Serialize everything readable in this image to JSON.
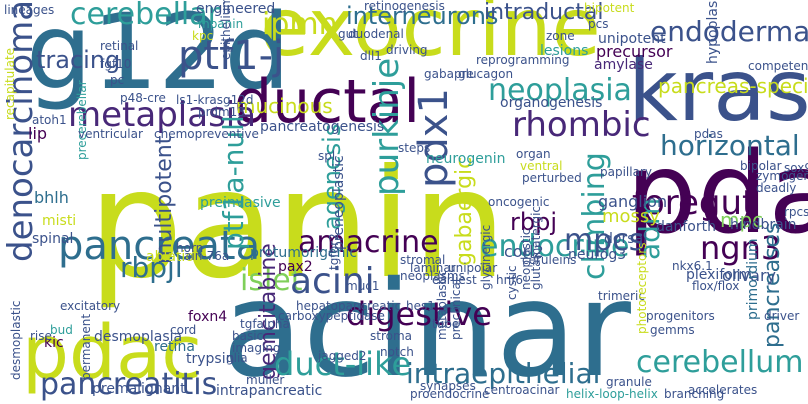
{
  "palette": {
    "yellow_green": "#c8dc1c",
    "light_green": "#7fcf5a",
    "green": "#3aa680",
    "teal": "#2e9e9a",
    "steel": "#2e6e8e",
    "blue": "#3b528b",
    "purple": "#482878",
    "dark": "#440154"
  },
  "words": [
    {
      "text": "panin",
      "color": "#c8dc1c"
    },
    {
      "text": "acinar",
      "color": "#2e6e8e"
    },
    {
      "text": "exocrine",
      "color": "#c8dc1c"
    },
    {
      "text": "g12d",
      "color": "#2e6e8e"
    },
    {
      "text": "pda",
      "color": "#440154"
    },
    {
      "text": "kras",
      "color": "#3b528b"
    },
    {
      "text": "ductal",
      "color": "#440154"
    },
    {
      "text": "pdac",
      "color": "#c8dc1c"
    },
    {
      "text": "pancreata",
      "color": "#2e6e8e"
    },
    {
      "text": "metaplasia",
      "color": "#482878"
    },
    {
      "text": "ptf1-j",
      "color": "#3b528b"
    },
    {
      "text": "denocarcinoma",
      "color": "#3b528b"
    },
    {
      "text": "pancreatitis",
      "color": "#3b528b"
    },
    {
      "text": "cerebellar",
      "color": "#2e9e9a"
    },
    {
      "text": "interneurons",
      "color": "#2e6e8e"
    },
    {
      "text": "intraductal",
      "color": "#3b528b"
    },
    {
      "text": "endodermal",
      "color": "#3b528b"
    },
    {
      "text": "ipmn",
      "color": "#c8dc1c"
    },
    {
      "text": "tracing",
      "color": "#3b528b"
    },
    {
      "text": "neoplasia",
      "color": "#2e9e9a"
    },
    {
      "text": "rhombic",
      "color": "#482878"
    },
    {
      "text": "horizontal",
      "color": "#2e6e8e"
    },
    {
      "text": "foregut",
      "color": "#440154"
    },
    {
      "text": "pdx1",
      "color": "#3b528b"
    },
    {
      "text": "purkinje",
      "color": "#2e9e9a"
    },
    {
      "text": "ptf1a-null",
      "color": "#2e9e9a"
    },
    {
      "text": "multipotent",
      "color": "#3b528b"
    },
    {
      "text": "agenesis",
      "color": "#2e9e9a"
    },
    {
      "text": "climbing",
      "color": "#2e9e9a"
    },
    {
      "text": "ngn3",
      "color": "#440154"
    },
    {
      "text": "adm",
      "color": "#2e9e9a"
    },
    {
      "text": "rbpj",
      "color": "#440154"
    },
    {
      "text": "rbpjl",
      "color": "#2e6e8e"
    },
    {
      "text": "amacrine",
      "color": "#440154"
    },
    {
      "text": "endocrine",
      "color": "#2e9e9a"
    },
    {
      "text": "mpcs",
      "color": "#3b528b"
    },
    {
      "text": "islet",
      "color": "#7fcf5a"
    },
    {
      "text": "acini",
      "color": "#3b528b"
    },
    {
      "text": "digestive",
      "color": "#440154"
    },
    {
      "text": "gemcitabine",
      "color": "#482878"
    },
    {
      "text": "duct-like",
      "color": "#2e9e9a"
    },
    {
      "text": "intraepithelial",
      "color": "#2e6e8e"
    },
    {
      "text": "cerebellum",
      "color": "#2e9e9a"
    },
    {
      "text": "pancreases",
      "color": "#2e6e8e"
    },
    {
      "text": "mucinous",
      "color": "#c8dc1c"
    },
    {
      "text": "gabaergic",
      "color": "#c8dc1c"
    },
    {
      "text": "mpc",
      "color": "#7fcf5a"
    },
    {
      "text": "pancreas-specific",
      "color": "#c8dc1c"
    },
    {
      "text": "organogenesis",
      "color": "#3b528b"
    },
    {
      "text": "precursor",
      "color": "#440154"
    },
    {
      "text": "unipotent",
      "color": "#3b528b"
    },
    {
      "text": "lesions",
      "color": "#2e9e9a"
    },
    {
      "text": "amylase",
      "color": "#482878"
    },
    {
      "text": "zone",
      "color": "#3b528b"
    },
    {
      "text": "hypoplasia",
      "color": "#3b528b"
    },
    {
      "text": "neurogenin",
      "color": "#2e9e9a"
    },
    {
      "text": "pancreatogenesis",
      "color": "#3b528b"
    },
    {
      "text": "mossy",
      "color": "#c8dc1c"
    },
    {
      "text": "ganglion",
      "color": "#3b528b"
    },
    {
      "text": "danforth",
      "color": "#3b528b"
    },
    {
      "text": "hindbrain",
      "color": "#3b528b"
    },
    {
      "text": "olivary",
      "color": "#3b528b"
    },
    {
      "text": "corl2",
      "color": "#3b528b"
    },
    {
      "text": "dorsal",
      "color": "#3b528b"
    },
    {
      "text": "neurog3",
      "color": "#3b528b"
    },
    {
      "text": "preinvasive",
      "color": "#2e9e9a"
    },
    {
      "text": "protumorigenic",
      "color": "#2e6e8e"
    },
    {
      "text": "preneoplastic",
      "color": "#3b528b"
    },
    {
      "text": "pax2",
      "color": "#440154"
    },
    {
      "text": "bhlh",
      "color": "#2e6e8e"
    },
    {
      "text": "misti",
      "color": "#c8dc1c"
    },
    {
      "text": "spinal",
      "color": "#3b528b"
    },
    {
      "text": "lip",
      "color": "#440154"
    },
    {
      "text": "ablation",
      "color": "#c8dc1c"
    },
    {
      "text": "foxn4",
      "color": "#440154"
    },
    {
      "text": "desmoplasia",
      "color": "#3b528b"
    },
    {
      "text": "excitatory",
      "color": "#3b528b"
    },
    {
      "text": "kic",
      "color": "#440154"
    },
    {
      "text": "bud",
      "color": "#2e9e9a"
    },
    {
      "text": "retina",
      "color": "#2e6e8e"
    },
    {
      "text": "trypsin",
      "color": "#3b528b"
    },
    {
      "text": "premalignant",
      "color": "#3b528b"
    },
    {
      "text": "intrapancreatic",
      "color": "#3b528b"
    },
    {
      "text": "engineered",
      "color": "#3b528b"
    },
    {
      "text": "mpanin",
      "color": "#2e9e9a"
    },
    {
      "text": "kpc",
      "color": "#c8dc1c"
    },
    {
      "text": "gut",
      "color": "#3b528b"
    },
    {
      "text": "duodenal",
      "color": "#3b528b"
    },
    {
      "text": "retinal",
      "color": "#3b528b"
    },
    {
      "text": "fgf10",
      "color": "#3b528b"
    },
    {
      "text": "epithelium",
      "color": "#3b528b"
    },
    {
      "text": "p48-cre",
      "color": "#3b528b"
    },
    {
      "text": "gabapre",
      "color": "#3b528b"
    },
    {
      "text": "glucagon",
      "color": "#3b528b"
    },
    {
      "text": "dll1",
      "color": "#3b528b"
    },
    {
      "text": "hes1",
      "color": "#3b528b"
    },
    {
      "text": "muc1",
      "color": "#3b528b"
    },
    {
      "text": "neoplastic",
      "color": "#3b528b"
    },
    {
      "text": "cystic",
      "color": "#3b528b"
    },
    {
      "text": "glycinergic",
      "color": "#3b528b"
    },
    {
      "text": "glutamatergic",
      "color": "#3b528b"
    },
    {
      "text": "trimeric",
      "color": "#3b528b"
    },
    {
      "text": "progenitors",
      "color": "#3b528b"
    },
    {
      "text": "plexiform",
      "color": "#3b528b"
    },
    {
      "text": "primordium",
      "color": "#2e6e8e"
    },
    {
      "text": "photoreceptors",
      "color": "#c8dc1c"
    },
    {
      "text": "gemms",
      "color": "#3b528b"
    },
    {
      "text": "centroacinar",
      "color": "#3b528b"
    },
    {
      "text": "proendocrine",
      "color": "#3b528b"
    },
    {
      "text": "helix-loop-helix",
      "color": "#2e9e9a"
    },
    {
      "text": "accelerates",
      "color": "#3b528b"
    },
    {
      "text": "notch",
      "color": "#3b528b"
    },
    {
      "text": "stroma",
      "color": "#3b528b"
    },
    {
      "text": "preclinical",
      "color": "#3b528b"
    },
    {
      "text": "metaplastic",
      "color": "#3b528b"
    },
    {
      "text": "basic",
      "color": "#3b528b"
    },
    {
      "text": "imaging",
      "color": "#3b528b"
    },
    {
      "text": "glia",
      "color": "#3b528b"
    },
    {
      "text": "cord",
      "color": "#3b528b"
    },
    {
      "text": "horn",
      "color": "#3b528b"
    },
    {
      "text": "lineages",
      "color": "#3b528b"
    },
    {
      "text": "recapitulate",
      "color": "#c8dc1c"
    },
    {
      "text": "precerebellar",
      "color": "#2e9e9a"
    },
    {
      "text": "atoh1",
      "color": "#3b528b"
    },
    {
      "text": "ventricular",
      "color": "#3b528b"
    },
    {
      "text": "chemopreventive",
      "color": "#3b528b"
    },
    {
      "text": "ls1-krasg12d",
      "color": "#3b528b"
    },
    {
      "text": "retinogenesis",
      "color": "#3b528b"
    },
    {
      "text": "reprogramming",
      "color": "#3b528b"
    },
    {
      "text": "driving",
      "color": "#3b528b"
    },
    {
      "text": "bipotent",
      "color": "#c8dc1c"
    },
    {
      "text": "competence",
      "color": "#3b528b"
    },
    {
      "text": "pdas",
      "color": "#3b528b"
    },
    {
      "text": "bipolar",
      "color": "#3b528b"
    },
    {
      "text": "zymogen",
      "color": "#3b528b"
    },
    {
      "text": "deadly",
      "color": "#3b528b"
    },
    {
      "text": "papillary",
      "color": "#3b528b"
    },
    {
      "text": "steps",
      "color": "#3b528b"
    },
    {
      "text": "ventral",
      "color": "#c8dc1c"
    },
    {
      "text": "perturbed",
      "color": "#3b528b"
    },
    {
      "text": "oncogenic",
      "color": "#3b528b"
    },
    {
      "text": "stromal",
      "color": "#3b528b"
    },
    {
      "text": "tgfbr2",
      "color": "#3b528b"
    },
    {
      "text": "organ",
      "color": "#3b528b"
    },
    {
      "text": "nkx6.1",
      "color": "#3b528b"
    },
    {
      "text": "hnf6",
      "color": "#3b528b"
    },
    {
      "text": "flox/flox",
      "color": "#3b528b"
    },
    {
      "text": "unipolar",
      "color": "#3b528b"
    },
    {
      "text": "laminar",
      "color": "#3b528b"
    },
    {
      "text": "neoplasms",
      "color": "#3b528b"
    },
    {
      "text": "ceruleins",
      "color": "#3b528b"
    },
    {
      "text": "tube",
      "color": "#3b528b"
    },
    {
      "text": "synapses",
      "color": "#3b528b"
    },
    {
      "text": "carboxypeptidase",
      "color": "#3b528b"
    },
    {
      "text": "hepatopancreatic",
      "color": "#3b528b"
    },
    {
      "text": "jagged2",
      "color": "#3b528b"
    },
    {
      "text": "tgfalpha",
      "color": "#3b528b"
    },
    {
      "text": "muller",
      "color": "#3b528b"
    },
    {
      "text": "rise",
      "color": "#3b528b"
    },
    {
      "text": "permanent",
      "color": "#3b528b"
    },
    {
      "text": "desmoplastic",
      "color": "#3b528b"
    },
    {
      "text": "granule",
      "color": "#3b528b"
    },
    {
      "text": "branching",
      "color": "#3b528b"
    },
    {
      "text": "driver",
      "color": "#3b528b"
    },
    {
      "text": "rpcs",
      "color": "#3b528b"
    },
    {
      "text": "sox9",
      "color": "#3b528b"
    },
    {
      "text": "pc",
      "color": "#3b528b"
    },
    {
      "text": "prdm13",
      "color": "#3b528b"
    },
    {
      "text": "earliest",
      "color": "#3b528b"
    },
    {
      "text": "ain-76a",
      "color": "#3b528b"
    },
    {
      "text": "spl",
      "color": "#3b528b"
    },
    {
      "text": "pcs",
      "color": "#3b528b"
    }
  ]
}
